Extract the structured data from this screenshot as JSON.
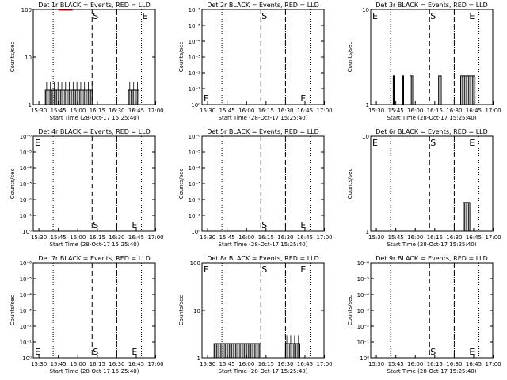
{
  "figure": {
    "xlabel": "Start Time (28-Oct-17 15:25:40)",
    "ylabel": "Counts/sec",
    "xticks": [
      "15:30",
      "15:45",
      "16:00",
      "16:15",
      "16:30",
      "16:45",
      "17:00"
    ],
    "xrange_minutes": [
      0,
      94
    ],
    "colors": {
      "events": "#000000",
      "lld": "#ff0000"
    }
  },
  "chart_data": [
    {
      "type": "line",
      "title": "Det 1r BLACK = Events, RED = LLD",
      "yscale": "log",
      "ylim": [
        1,
        100
      ],
      "yticks": [
        "1",
        "10",
        "100"
      ],
      "dotted_vlines": [
        "15:41",
        "16:30",
        "16:49"
      ],
      "dashed_vlines": [
        "16:11",
        "16:30"
      ],
      "markers": [
        {
          "text": "S",
          "at": "16:11",
          "row": "top"
        },
        {
          "text": "E",
          "at": "16:49",
          "row": "top"
        }
      ],
      "series": [
        {
          "color": "#000000",
          "segments": [
            {
              "from": "15:35",
              "to": "16:11",
              "level": 2,
              "max": 3
            },
            {
              "from": "16:39",
              "to": "16:47",
              "level": 2,
              "max": 3
            }
          ]
        },
        {
          "color": "#ff0000",
          "segments": [
            {
              "from": "15:45",
              "to": "15:56",
              "level": 100,
              "max": 100
            }
          ]
        }
      ]
    },
    {
      "type": "line",
      "title": "Det 2r BLACK = Events, RED = LLD",
      "yscale": "log",
      "ylim": [
        1e-06,
        1
      ],
      "yticks": [
        "10⁰",
        "10⁻¹",
        "10⁻²",
        "10⁻³",
        "10⁻⁴",
        "10⁻⁵",
        "10⁻⁶"
      ],
      "dotted_vlines": [
        "15:41",
        "16:30",
        "16:49"
      ],
      "dashed_vlines": [
        "16:11",
        "16:30"
      ],
      "markers": [
        {
          "text": "E",
          "at": "15:26",
          "row": "bottom"
        },
        {
          "text": "S",
          "at": "16:11",
          "row": "top"
        },
        {
          "text": "E",
          "at": "16:41",
          "row": "bottom"
        }
      ],
      "series": []
    },
    {
      "type": "line",
      "title": "Det 3r BLACK = Events, RED = LLD",
      "yscale": "log",
      "ylim": [
        1,
        10
      ],
      "yticks": [
        "1",
        "10"
      ],
      "dotted_vlines": [
        "15:41",
        "16:30",
        "16:49"
      ],
      "dashed_vlines": [
        "16:11",
        "16:30"
      ],
      "markers": [
        {
          "text": "E",
          "at": "15:26",
          "row": "top"
        },
        {
          "text": "S",
          "at": "16:11",
          "row": "top"
        },
        {
          "text": "E",
          "at": "16:41",
          "row": "top"
        }
      ],
      "series": [
        {
          "color": "#000000",
          "segments": [
            {
              "from": "15:43",
              "to": "15:44",
              "level": 2,
              "max": 2
            },
            {
              "from": "15:50",
              "to": "15:51",
              "level": 2,
              "max": 2
            },
            {
              "from": "15:56",
              "to": "15:58",
              "level": 2,
              "max": 2
            },
            {
              "from": "16:18",
              "to": "16:20",
              "level": 2,
              "max": 2
            },
            {
              "from": "16:35",
              "to": "16:46",
              "level": 2,
              "max": 2
            }
          ]
        }
      ]
    },
    {
      "type": "line",
      "title": "Det 4r BLACK = Events, RED = LLD",
      "yscale": "log",
      "ylim": [
        1e-06,
        1
      ],
      "yticks": [
        "10⁰",
        "10⁻¹",
        "10⁻²",
        "10⁻³",
        "10⁻⁴",
        "10⁻⁵",
        "10⁻⁶"
      ],
      "dotted_vlines": [
        "15:41",
        "16:30",
        "16:49"
      ],
      "dashed_vlines": [
        "16:11",
        "16:30"
      ],
      "markers": [
        {
          "text": "E",
          "at": "15:26",
          "row": "top"
        },
        {
          "text": "S",
          "at": "16:11",
          "row": "bottom"
        },
        {
          "text": "E",
          "at": "16:41",
          "row": "bottom"
        }
      ],
      "series": []
    },
    {
      "type": "line",
      "title": "Det 5r BLACK = Events, RED = LLD",
      "yscale": "log",
      "ylim": [
        1e-06,
        1
      ],
      "yticks": [
        "10⁰",
        "10⁻¹",
        "10⁻²",
        "10⁻³",
        "10⁻⁴",
        "10⁻⁵",
        "10⁻⁶"
      ],
      "dotted_vlines": [
        "15:41",
        "16:30",
        "16:49"
      ],
      "dashed_vlines": [
        "16:11",
        "16:30"
      ],
      "markers": [
        {
          "text": "S",
          "at": "16:11",
          "row": "bottom"
        },
        {
          "text": "E",
          "at": "16:41",
          "row": "bottom"
        }
      ],
      "series": []
    },
    {
      "type": "line",
      "title": "Det 6r BLACK = Events, RED = LLD",
      "yscale": "log",
      "ylim": [
        1,
        10
      ],
      "yticks": [
        "1",
        "10"
      ],
      "dotted_vlines": [
        "15:41",
        "16:30",
        "16:49"
      ],
      "dashed_vlines": [
        "16:11",
        "16:30"
      ],
      "markers": [
        {
          "text": "E",
          "at": "15:26",
          "row": "top"
        },
        {
          "text": "S",
          "at": "16:11",
          "row": "top"
        },
        {
          "text": "E",
          "at": "16:41",
          "row": "top"
        }
      ],
      "series": [
        {
          "color": "#000000",
          "segments": [
            {
              "from": "16:37",
              "to": "16:42",
              "level": 2,
              "max": 2
            }
          ]
        }
      ]
    },
    {
      "type": "line",
      "title": "Det 7r BLACK = Events, RED = LLD",
      "yscale": "log",
      "ylim": [
        1e-06,
        1
      ],
      "yticks": [
        "10⁰",
        "10⁻¹",
        "10⁻²",
        "10⁻³",
        "10⁻⁴",
        "10⁻⁵",
        "10⁻⁶"
      ],
      "dotted_vlines": [
        "15:41",
        "16:30",
        "16:49"
      ],
      "dashed_vlines": [
        "16:11",
        "16:30"
      ],
      "markers": [
        {
          "text": "E",
          "at": "15:26",
          "row": "bottom"
        },
        {
          "text": "S",
          "at": "16:11",
          "row": "bottom"
        },
        {
          "text": "E",
          "at": "16:41",
          "row": "bottom"
        }
      ],
      "series": []
    },
    {
      "type": "line",
      "title": "Det 8r BLACK = Events, RED = LLD",
      "yscale": "log",
      "ylim": [
        1,
        100
      ],
      "yticks": [
        "1",
        "10",
        "100"
      ],
      "dotted_vlines": [
        "15:41",
        "16:30",
        "16:49"
      ],
      "dashed_vlines": [
        "16:11",
        "16:30"
      ],
      "markers": [
        {
          "text": "E",
          "at": "15:26",
          "row": "top"
        },
        {
          "text": "S",
          "at": "16:11",
          "row": "top"
        },
        {
          "text": "E",
          "at": "16:41",
          "row": "top"
        }
      ],
      "series": [
        {
          "color": "#000000",
          "segments": [
            {
              "from": "15:35",
              "to": "16:11",
              "level": 2,
              "max": 2
            },
            {
              "from": "16:30",
              "to": "16:41",
              "level": 2,
              "max": 3
            }
          ]
        }
      ]
    },
    {
      "type": "line",
      "title": "Det 9r BLACK = Events, RED = LLD",
      "yscale": "log",
      "ylim": [
        1e-06,
        1
      ],
      "yticks": [
        "10⁰",
        "10⁻¹",
        "10⁻²",
        "10⁻³",
        "10⁻⁴",
        "10⁻⁵",
        "10⁻⁶"
      ],
      "dotted_vlines": [
        "15:41",
        "16:30",
        "16:49"
      ],
      "dashed_vlines": [
        "16:11",
        "16:30"
      ],
      "markers": [
        {
          "text": "S",
          "at": "16:11",
          "row": "bottom"
        },
        {
          "text": "E",
          "at": "16:41",
          "row": "bottom"
        }
      ],
      "series": []
    }
  ]
}
